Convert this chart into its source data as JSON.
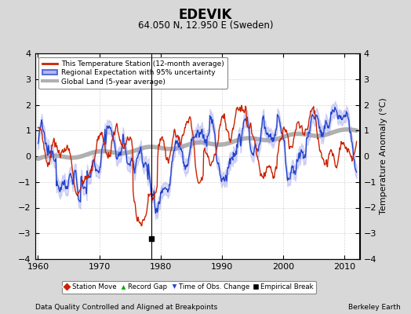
{
  "title": "EDEVIK",
  "subtitle": "64.050 N, 12.950 E (Sweden)",
  "ylabel": "Temperature Anomaly (°C)",
  "xlabel_left": "Data Quality Controlled and Aligned at Breakpoints",
  "xlabel_right": "Berkeley Earth",
  "xlim": [
    1959.5,
    2012.5
  ],
  "ylim": [
    -4,
    4
  ],
  "yticks": [
    -4,
    -3,
    -2,
    -1,
    0,
    1,
    2,
    3,
    4
  ],
  "xticks": [
    1960,
    1970,
    1980,
    1990,
    2000,
    2010
  ],
  "background_color": "#d8d8d8",
  "plot_bg_color": "#ffffff",
  "grid_color": "#cccccc",
  "empirical_break_year": 1978.5,
  "empirical_break_marker_value": -3.2,
  "seed": 12345
}
